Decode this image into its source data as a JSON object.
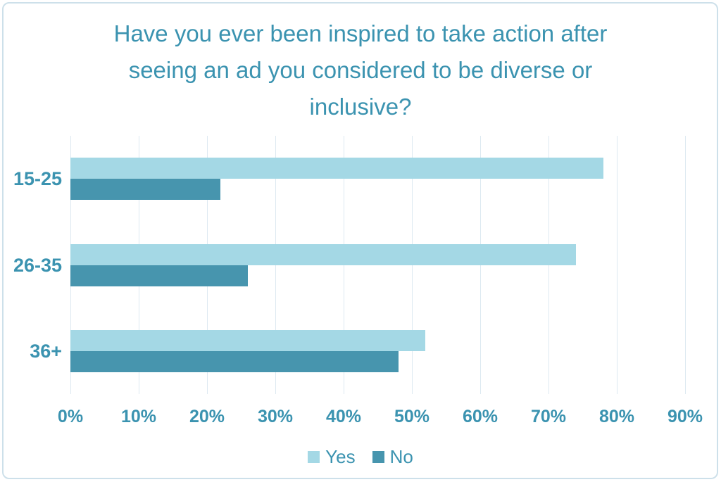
{
  "title": {
    "line1": "Have you ever been inspired to take action after",
    "line2": "seeing an ad you considered to be diverse or",
    "line3": "inclusive?"
  },
  "chart_data": {
    "type": "bar",
    "orientation": "horizontal",
    "title": "Have you ever been inspired to take action after seeing an ad you considered to be diverse or inclusive?",
    "categories": [
      "15-25",
      "26-35",
      "36+"
    ],
    "series": [
      {
        "name": "Yes",
        "values": [
          78,
          74,
          52
        ],
        "color": "#a4d8e5"
      },
      {
        "name": "No",
        "values": [
          22,
          26,
          48
        ],
        "color": "#4795ae"
      }
    ],
    "x_ticks": [
      "0%",
      "10%",
      "20%",
      "30%",
      "40%",
      "50%",
      "60%",
      "70%",
      "80%",
      "90%"
    ],
    "xlim": [
      0,
      90
    ],
    "xlabel": "",
    "ylabel": "",
    "grid": "vertical",
    "legend_position": "bottom"
  },
  "colors": {
    "title_text": "#3b93b0",
    "axis_text": "#3b93b0",
    "gridline": "#dde9f1",
    "border": "#cde0ea",
    "background": "#ffffff"
  }
}
